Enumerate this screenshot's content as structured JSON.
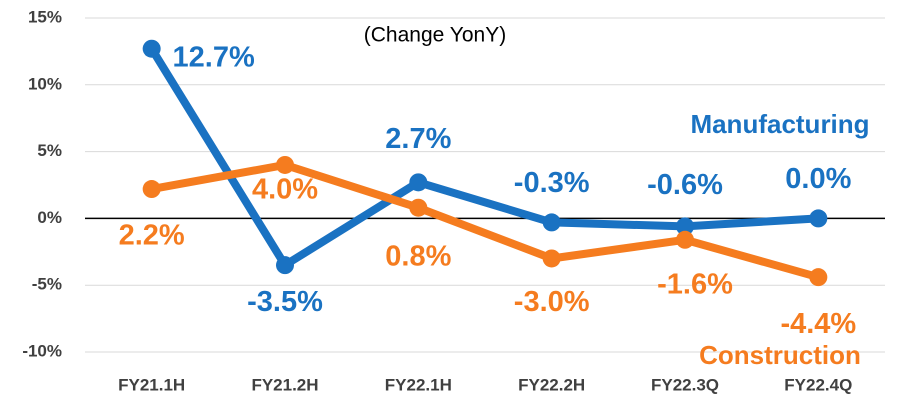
{
  "chart_data": {
    "type": "line",
    "annotation": "(Change YonY)",
    "categories": [
      "FY21.1H",
      "FY21.2H",
      "FY22.1H",
      "FY22.2H",
      "FY22.3Q",
      "FY22.4Q"
    ],
    "series": [
      {
        "name": "Manufacturing",
        "color": "#1a72c2",
        "values": [
          12.7,
          -3.5,
          2.7,
          -0.3,
          -0.6,
          0.0
        ],
        "value_labels": [
          "12.7%",
          "-3.5%",
          "2.7%",
          "-0.3%",
          "-0.6%",
          "0.0%"
        ]
      },
      {
        "name": "Construction",
        "color": "#f57c1f",
        "values": [
          2.2,
          4.0,
          0.8,
          -3.0,
          -1.6,
          -4.4
        ],
        "value_labels": [
          "2.2%",
          "4.0%",
          "0.8%",
          "-3.0%",
          "-1.6%",
          "-4.4%"
        ]
      }
    ],
    "ylim": [
      -10,
      15
    ],
    "yticks": [
      {
        "value": -10,
        "label": "-10%"
      },
      {
        "value": -5,
        "label": "-5%"
      },
      {
        "value": 0,
        "label": "0%"
      },
      {
        "value": 5,
        "label": "5%"
      },
      {
        "value": 10,
        "label": "10%"
      },
      {
        "value": 15,
        "label": "15%"
      }
    ],
    "grid": true
  }
}
